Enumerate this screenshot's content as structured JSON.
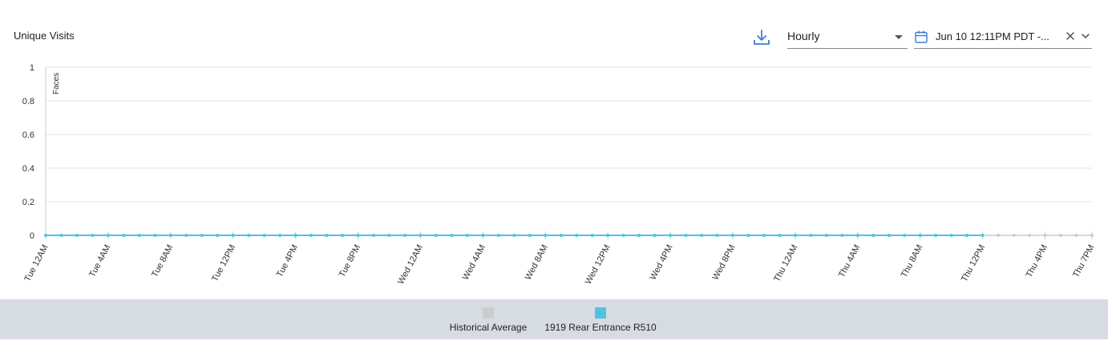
{
  "header": {
    "title": "Unique Visits",
    "interval_value": "Hourly",
    "date_range_value": "Jun 10 12:11PM PDT -..."
  },
  "icons": {
    "download": "download-icon",
    "dropdown": "caret-down-icon",
    "calendar": "calendar-icon",
    "clear": "close-icon",
    "expand": "chevron-down-icon"
  },
  "chart_data": {
    "type": "line",
    "title": "Unique Visits",
    "ylabel": "Faces",
    "ylim": [
      0,
      1
    ],
    "yticks": [
      "0",
      "0.2",
      "0.4",
      "0.6",
      "0.8",
      "1"
    ],
    "xtick_labels": [
      "Tue 12AM",
      "Tue 4AM",
      "Tue 8AM",
      "Tue 12PM",
      "Tue 4PM",
      "Tue 8PM",
      "Wed 12AM",
      "Wed 4AM",
      "Wed 8AM",
      "Wed 12PM",
      "Wed 4PM",
      "Wed 8PM",
      "Thu 12AM",
      "Thu 4AM",
      "Thu 8AM",
      "Thu 12PM",
      "Thu 4PM",
      "Thu 7PM"
    ],
    "xtick_hours": [
      0,
      4,
      8,
      12,
      16,
      20,
      24,
      28,
      32,
      36,
      40,
      44,
      48,
      52,
      56,
      60,
      64,
      67
    ],
    "x_hours_range": [
      0,
      67
    ],
    "series": [
      {
        "name": "Historical Average",
        "color": "#cccccc",
        "x_hours": [
          60,
          61,
          62,
          63,
          64,
          65,
          66,
          67
        ],
        "values": [
          0,
          0,
          0,
          0,
          0,
          0,
          0,
          0
        ]
      },
      {
        "name": "1919 Rear Entrance R510",
        "color": "#4fc3e0",
        "x_hours": [
          0,
          1,
          2,
          3,
          4,
          5,
          6,
          7,
          8,
          9,
          10,
          11,
          12,
          13,
          14,
          15,
          16,
          17,
          18,
          19,
          20,
          21,
          22,
          23,
          24,
          25,
          26,
          27,
          28,
          29,
          30,
          31,
          32,
          33,
          34,
          35,
          36,
          37,
          38,
          39,
          40,
          41,
          42,
          43,
          44,
          45,
          46,
          47,
          48,
          49,
          50,
          51,
          52,
          53,
          54,
          55,
          56,
          57,
          58,
          59,
          60
        ],
        "values": [
          0,
          0,
          0,
          0,
          0,
          0,
          0,
          0,
          0,
          0,
          0,
          0,
          0,
          0,
          0,
          0,
          0,
          0,
          0,
          0,
          0,
          0,
          0,
          0,
          0,
          0,
          0,
          0,
          0,
          0,
          0,
          0,
          0,
          0,
          0,
          0,
          0,
          0,
          0,
          0,
          0,
          0,
          0,
          0,
          0,
          0,
          0,
          0,
          0,
          0,
          0,
          0,
          0,
          0,
          0,
          0,
          0,
          0,
          0,
          0,
          0
        ]
      }
    ],
    "legend_position": "bottom",
    "grid": true
  }
}
